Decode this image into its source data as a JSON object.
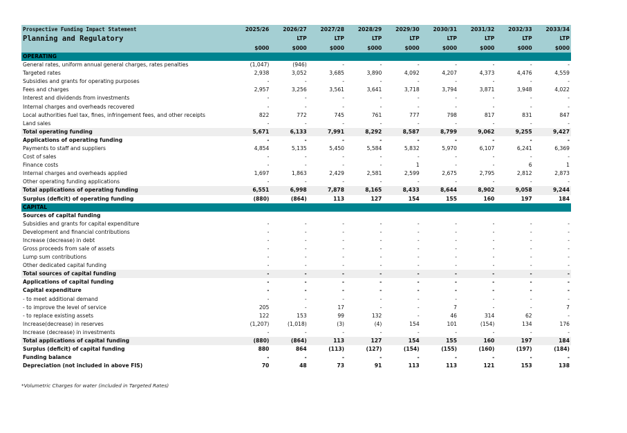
{
  "header": {
    "title": "Prospective Funding Impact Statement",
    "subtitle": "Planning and Regulatory",
    "years": [
      "2025/26",
      "2026/27",
      "2027/28",
      "2028/29",
      "2029/30",
      "2030/31",
      "2031/32",
      "2032/33",
      "2033/34"
    ],
    "plans": [
      "",
      "LTP",
      "LTP",
      "LTP",
      "LTP",
      "LTP",
      "LTP",
      "LTP",
      "LTP"
    ],
    "units": [
      "$000",
      "$000",
      "$000",
      "$000",
      "$000",
      "$000",
      "$000",
      "$000",
      "$000"
    ]
  },
  "rows": [
    {
      "type": "section",
      "label": "OPERATING",
      "values": [
        "",
        "",
        "",
        "",
        "",
        "",
        "",
        "",
        ""
      ]
    },
    {
      "type": "normal",
      "label": "General rates, uniform annual general charges, rates penalties",
      "values": [
        "(1,047)",
        "(946)",
        "-",
        "-",
        "-",
        "-",
        "-",
        "-",
        "-"
      ]
    },
    {
      "type": "normal",
      "label": "Targeted rates",
      "values": [
        "2,938",
        "3,052",
        "3,685",
        "3,890",
        "4,092",
        "4,207",
        "4,373",
        "4,476",
        "4,559"
      ]
    },
    {
      "type": "normal",
      "label": "Subsidies and grants for operating purposes",
      "values": [
        "-",
        "-",
        "-",
        "-",
        "-",
        "-",
        "-",
        "-",
        "-"
      ]
    },
    {
      "type": "normal",
      "label": "Fees and charges",
      "values": [
        "2,957",
        "3,256",
        "3,561",
        "3,641",
        "3,718",
        "3,794",
        "3,871",
        "3,948",
        "4,022"
      ]
    },
    {
      "type": "normal",
      "label": "Interest and dividends from investments",
      "values": [
        "-",
        "-",
        "-",
        "-",
        "-",
        "-",
        "-",
        "-",
        "-"
      ]
    },
    {
      "type": "normal",
      "label": "Internal charges and overheads recovered",
      "values": [
        "-",
        "-",
        "-",
        "-",
        "-",
        "-",
        "-",
        "-",
        "-"
      ]
    },
    {
      "type": "normal",
      "label": "Local authorities fuel tax, fines, infringement fees, and other receipts",
      "values": [
        "822",
        "772",
        "745",
        "761",
        "777",
        "798",
        "817",
        "831",
        "847"
      ]
    },
    {
      "type": "normal",
      "label": "Land sales",
      "values": [
        "-",
        "-",
        "-",
        "-",
        "-",
        "-",
        "-",
        "-",
        "-"
      ]
    },
    {
      "type": "total",
      "label": "Total operating funding",
      "values": [
        "5,671",
        "6,133",
        "7,991",
        "8,292",
        "8,587",
        "8,799",
        "9,062",
        "9,255",
        "9,427"
      ]
    },
    {
      "type": "bold",
      "label": "Applications of operating funding",
      "values": [
        "-",
        "-",
        "-",
        "-",
        "-",
        "-",
        "-",
        "-",
        "-"
      ]
    },
    {
      "type": "normal",
      "label": "Payments to staff and suppliers",
      "values": [
        "4,854",
        "5,135",
        "5,450",
        "5,584",
        "5,832",
        "5,970",
        "6,107",
        "6,241",
        "6,369"
      ]
    },
    {
      "type": "normal",
      "label": "Cost of sales",
      "values": [
        "-",
        "-",
        "-",
        "-",
        "-",
        "-",
        "-",
        "-",
        "-"
      ]
    },
    {
      "type": "normal",
      "label": "Finance costs",
      "values": [
        "-",
        "-",
        "-",
        "-",
        "1",
        "-",
        "-",
        "6",
        "1"
      ]
    },
    {
      "type": "normal",
      "label": "Internal charges and overheads applied",
      "values": [
        "1,697",
        "1,863",
        "2,429",
        "2,581",
        "2,599",
        "2,675",
        "2,795",
        "2,812",
        "2,873"
      ]
    },
    {
      "type": "normal",
      "label": "Other operating funding applications",
      "values": [
        "-",
        "-",
        "-",
        "-",
        "-",
        "-",
        "-",
        "-",
        "-"
      ]
    },
    {
      "type": "total",
      "label": "Total applications of operating funding",
      "values": [
        "6,551",
        "6,998",
        "7,878",
        "8,165",
        "8,433",
        "8,644",
        "8,902",
        "9,058",
        "9,244"
      ]
    },
    {
      "type": "bold",
      "label": "Surplus (deficit) of operating funding",
      "values": [
        "(880)",
        "(864)",
        "113",
        "127",
        "154",
        "155",
        "160",
        "197",
        "184"
      ]
    },
    {
      "type": "section",
      "label": "CAPITAL",
      "values": [
        "",
        "",
        "",
        "",
        "",
        "",
        "",
        "",
        ""
      ]
    },
    {
      "type": "bold",
      "label": "Sources of capital funding",
      "values": [
        "",
        "",
        "",
        "",
        "",
        "",
        "",
        "",
        ""
      ]
    },
    {
      "type": "normal",
      "label": "Subsidies and grants for capital expenditure",
      "values": [
        "-",
        "-",
        "-",
        "-",
        "-",
        "-",
        "-",
        "-",
        "-"
      ]
    },
    {
      "type": "normal",
      "label": "Development and financial contributions",
      "values": [
        "-",
        "-",
        "-",
        "-",
        "-",
        "-",
        "-",
        "-",
        "-"
      ]
    },
    {
      "type": "normal",
      "label": "Increase (decrease) in debt",
      "values": [
        "-",
        "-",
        "-",
        "-",
        "-",
        "-",
        "-",
        "-",
        "-"
      ]
    },
    {
      "type": "normal",
      "label": "Gross proceeds from sale of assets",
      "values": [
        "-",
        "-",
        "-",
        "-",
        "-",
        "-",
        "-",
        "-",
        "-"
      ]
    },
    {
      "type": "normal",
      "label": "Lump sum contributions",
      "values": [
        "-",
        "-",
        "-",
        "-",
        "-",
        "-",
        "-",
        "-",
        "-"
      ]
    },
    {
      "type": "normal",
      "label": "Other dedicated capital funding",
      "values": [
        "-",
        "-",
        "-",
        "-",
        "-",
        "-",
        "-",
        "-",
        "-"
      ]
    },
    {
      "type": "total",
      "label": "Total sources of capital funding",
      "values": [
        "-",
        "-",
        "-",
        "-",
        "-",
        "-",
        "-",
        "-",
        "-"
      ]
    },
    {
      "type": "bold",
      "label": "Applications of capital funding",
      "values": [
        "-",
        "-",
        "-",
        "-",
        "-",
        "-",
        "-",
        "-",
        "-"
      ]
    },
    {
      "type": "bold",
      "label": "Capital expenditure",
      "values": [
        "-",
        "-",
        "-",
        "-",
        "-",
        "-",
        "-",
        "-",
        "-"
      ]
    },
    {
      "type": "normal",
      "label": " - to meet additional demand",
      "values": [
        "-",
        "-",
        "-",
        "-",
        "-",
        "-",
        "-",
        "-",
        "-"
      ]
    },
    {
      "type": "normal",
      "label": " - to improve the level of service",
      "values": [
        "205",
        "-",
        "17",
        "-",
        "-",
        "7",
        "-",
        "-",
        "7"
      ]
    },
    {
      "type": "normal",
      "label": " - to replace existing assets",
      "values": [
        "122",
        "153",
        "99",
        "132",
        "-",
        "46",
        "314",
        "62",
        "-"
      ]
    },
    {
      "type": "normal",
      "label": "Increase(decrease) in reserves",
      "values": [
        "(1,207)",
        "(1,018)",
        "(3)",
        "(4)",
        "154",
        "101",
        "(154)",
        "134",
        "176"
      ]
    },
    {
      "type": "normal",
      "label": "Increase (decrease) in investments",
      "values": [
        "-",
        "-",
        "-",
        "-",
        "-",
        "-",
        "-",
        "-",
        "-"
      ]
    },
    {
      "type": "total",
      "label": "Total applications of capital funding",
      "values": [
        "(880)",
        "(864)",
        "113",
        "127",
        "154",
        "155",
        "160",
        "197",
        "184"
      ]
    },
    {
      "type": "bold",
      "label": "Surplus (deficit) of capital funding",
      "values": [
        "880",
        "864",
        "(113)",
        "(127)",
        "(154)",
        "(155)",
        "(160)",
        "(197)",
        "(184)"
      ]
    },
    {
      "type": "bold",
      "label": "Funding balance",
      "values": [
        "-",
        "-",
        "-",
        "-",
        "-",
        "-",
        "-",
        "-",
        "-"
      ]
    },
    {
      "type": "bold",
      "label": "Depreciation (not included in above FIS)",
      "values": [
        "70",
        "48",
        "73",
        "91",
        "113",
        "113",
        "121",
        "153",
        "138"
      ]
    }
  ],
  "footnote": "*Volumetric Charges for water (included in Targeted Rates)"
}
